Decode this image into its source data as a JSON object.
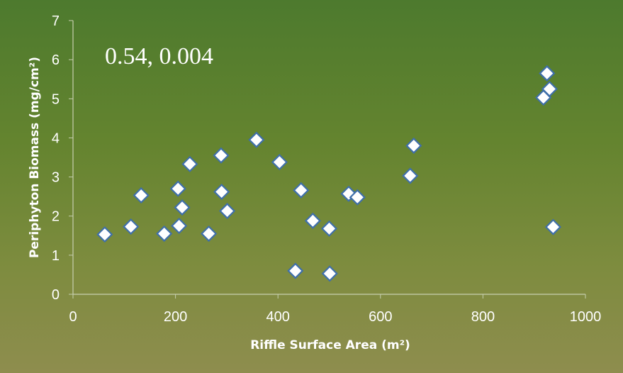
{
  "chart_data": {
    "type": "scatter",
    "title": "",
    "xlabel": "Riffle Surface Area (m²)",
    "ylabel": "Periphyton Biomass (mg/cm²)",
    "annotation": "0.54, 0.004",
    "xlim": [
      0,
      1000
    ],
    "ylim": [
      0,
      7
    ],
    "xticks": [
      0,
      200,
      400,
      600,
      800,
      1000
    ],
    "yticks": [
      0,
      1,
      2,
      3,
      4,
      5,
      6,
      7
    ],
    "grid": false,
    "legend": "none",
    "marker": {
      "shape": "diamond",
      "fill": "#ffffff",
      "stroke": "#3f6faa"
    },
    "background": {
      "top": "#4d7a2e",
      "bottom": "#8e8d4e"
    },
    "axis_color": "#c7cfb0",
    "points": [
      {
        "x": 62,
        "y": 1.53
      },
      {
        "x": 113,
        "y": 1.73
      },
      {
        "x": 133,
        "y": 2.53
      },
      {
        "x": 178,
        "y": 1.55
      },
      {
        "x": 205,
        "y": 2.7
      },
      {
        "x": 207,
        "y": 1.75
      },
      {
        "x": 213,
        "y": 2.22
      },
      {
        "x": 228,
        "y": 3.33
      },
      {
        "x": 265,
        "y": 1.55
      },
      {
        "x": 289,
        "y": 3.55
      },
      {
        "x": 290,
        "y": 2.62
      },
      {
        "x": 301,
        "y": 2.13
      },
      {
        "x": 358,
        "y": 3.95
      },
      {
        "x": 403,
        "y": 3.38
      },
      {
        "x": 434,
        "y": 0.6
      },
      {
        "x": 445,
        "y": 2.66
      },
      {
        "x": 468,
        "y": 1.88
      },
      {
        "x": 500,
        "y": 1.68
      },
      {
        "x": 501,
        "y": 0.53
      },
      {
        "x": 538,
        "y": 2.57
      },
      {
        "x": 555,
        "y": 2.48
      },
      {
        "x": 658,
        "y": 3.03
      },
      {
        "x": 665,
        "y": 3.8
      },
      {
        "x": 918,
        "y": 5.03
      },
      {
        "x": 925,
        "y": 5.65
      },
      {
        "x": 930,
        "y": 5.25
      },
      {
        "x": 937,
        "y": 1.72
      }
    ]
  }
}
